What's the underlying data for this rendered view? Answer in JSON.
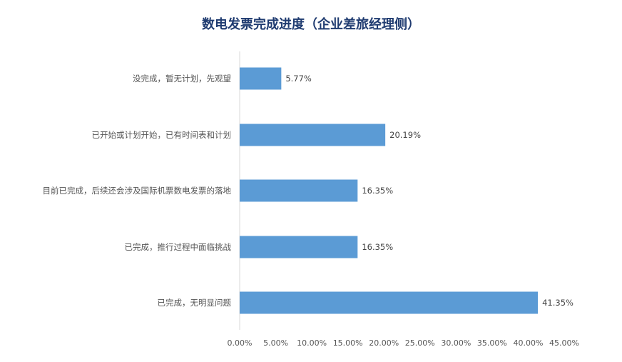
{
  "chart_data": {
    "type": "bar",
    "orientation": "horizontal",
    "title": "数电发票完成进度（企业差旅经理侧）",
    "categories": [
      "没完成，暂无计划，先观望",
      "已开始或计划开始，已有时间表和计划",
      "目前已完成，后续还会涉及国际机票数电发票的落地",
      "已完成，推行过程中面临挑战",
      "已完成，无明显问题"
    ],
    "values": [
      5.77,
      20.19,
      16.35,
      16.35,
      41.35
    ],
    "value_labels": [
      "5.77%",
      "20.19%",
      "16.35%",
      "16.35%",
      "41.35%"
    ],
    "xlim": [
      0,
      45
    ],
    "x_ticks": [
      "0.00%",
      "5.00%",
      "10.00%",
      "15.00%",
      "20.00%",
      "25.00%",
      "30.00%",
      "35.00%",
      "40.00%",
      "45.00%"
    ],
    "grid": false,
    "legend": "none",
    "bar_color": "#5b9bd5",
    "title_color": "#1f3b70",
    "axis_color": "#d9d9d9"
  }
}
